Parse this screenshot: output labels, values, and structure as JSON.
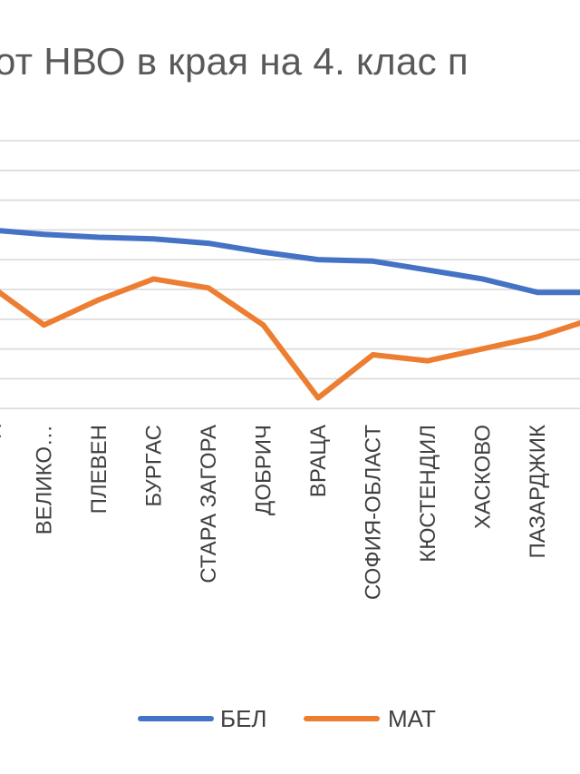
{
  "chart_data": {
    "type": "line",
    "title": "от НВО в края на 4. клас п",
    "categories": [
      "…д",
      "ВЕЛИКО…",
      "ПЛЕВЕН",
      "БУРГАС",
      "СТАРА ЗАГОРА",
      "ДОБРИЧ",
      "ВРАЦА",
      "СОФИЯ-ОБЛАСТ",
      "КЮСТЕНДИЛ",
      "ХАСКОВО",
      "ПАЗАРДЖИК",
      ""
    ],
    "series": [
      {
        "name": "БЕЛ",
        "color": "#4472C4",
        "values": [
          6.0,
          5.85,
          5.75,
          5.7,
          5.55,
          5.25,
          5.0,
          4.95,
          4.65,
          4.35,
          3.9,
          3.9
        ]
      },
      {
        "name": "МАТ",
        "color": "#ED7D31",
        "values": [
          4.15,
          2.8,
          3.65,
          4.35,
          4.05,
          2.8,
          0.35,
          1.8,
          1.6,
          2.0,
          2.4,
          3.0
        ]
      }
    ],
    "grid": true,
    "legend_position": "bottom"
  }
}
